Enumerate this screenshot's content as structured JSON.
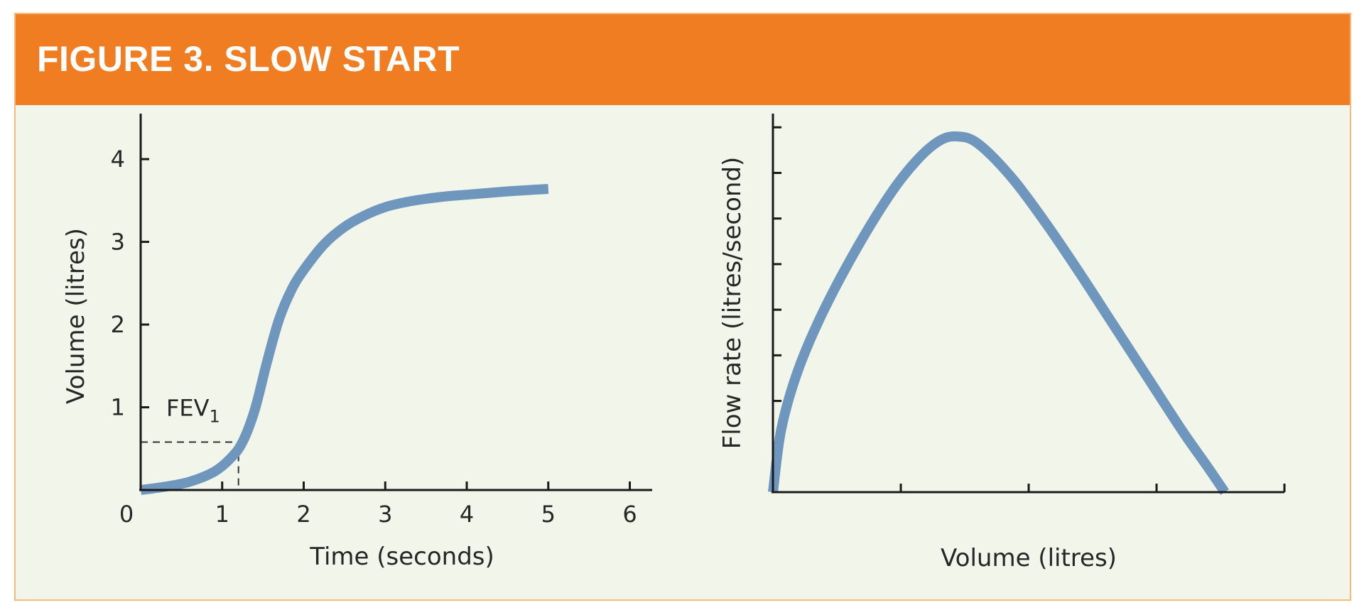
{
  "figure": {
    "title": "FIGURE 3. SLOW START",
    "banner_color": "#f07d22",
    "background_color": "#f2f6ea",
    "curve_color": "#6f96bd"
  },
  "chart_data": [
    {
      "type": "line",
      "xlabel": "Time (seconds)",
      "ylabel": "Volume (litres)",
      "xlim": [
        0,
        6.1
      ],
      "ylim": [
        0,
        4.55
      ],
      "xticks": [
        0,
        1,
        2,
        3,
        4,
        5,
        6
      ],
      "yticks": [
        1,
        2,
        3,
        4
      ],
      "x": [
        0,
        0.3,
        0.6,
        0.9,
        1.1,
        1.25,
        1.4,
        1.55,
        1.7,
        1.85,
        2.0,
        2.25,
        2.5,
        2.75,
        3.0,
        3.25,
        3.5,
        3.75,
        4.0,
        4.5,
        5.0
      ],
      "y": [
        0.0,
        0.04,
        0.1,
        0.22,
        0.38,
        0.58,
        0.97,
        1.55,
        2.07,
        2.42,
        2.66,
        2.97,
        3.18,
        3.32,
        3.42,
        3.48,
        3.52,
        3.55,
        3.57,
        3.61,
        3.64
      ],
      "annotation": {
        "label": "FEV",
        "subscript": "1",
        "x": 1.2,
        "y": 0.58
      }
    },
    {
      "type": "line",
      "xlabel": "Volume (litres)",
      "ylabel": "Flow rate (litres/second)",
      "xlim": [
        0,
        6
      ],
      "ylim": [
        0,
        8.3
      ],
      "xticks": [
        1.5,
        3,
        4.5,
        6
      ],
      "yticks": [
        1,
        2,
        3,
        4,
        5,
        6,
        7,
        8
      ],
      "x": [
        0,
        0.1,
        0.3,
        0.6,
        1.0,
        1.4,
        1.7,
        1.95,
        2.15,
        2.4,
        2.8,
        3.2,
        3.6,
        4.0,
        4.4,
        4.8,
        5.1,
        5.3
      ],
      "y": [
        0,
        1.4,
        2.7,
        4.0,
        5.4,
        6.6,
        7.3,
        7.7,
        7.8,
        7.65,
        6.9,
        5.9,
        4.8,
        3.65,
        2.5,
        1.35,
        0.55,
        0
      ]
    }
  ]
}
